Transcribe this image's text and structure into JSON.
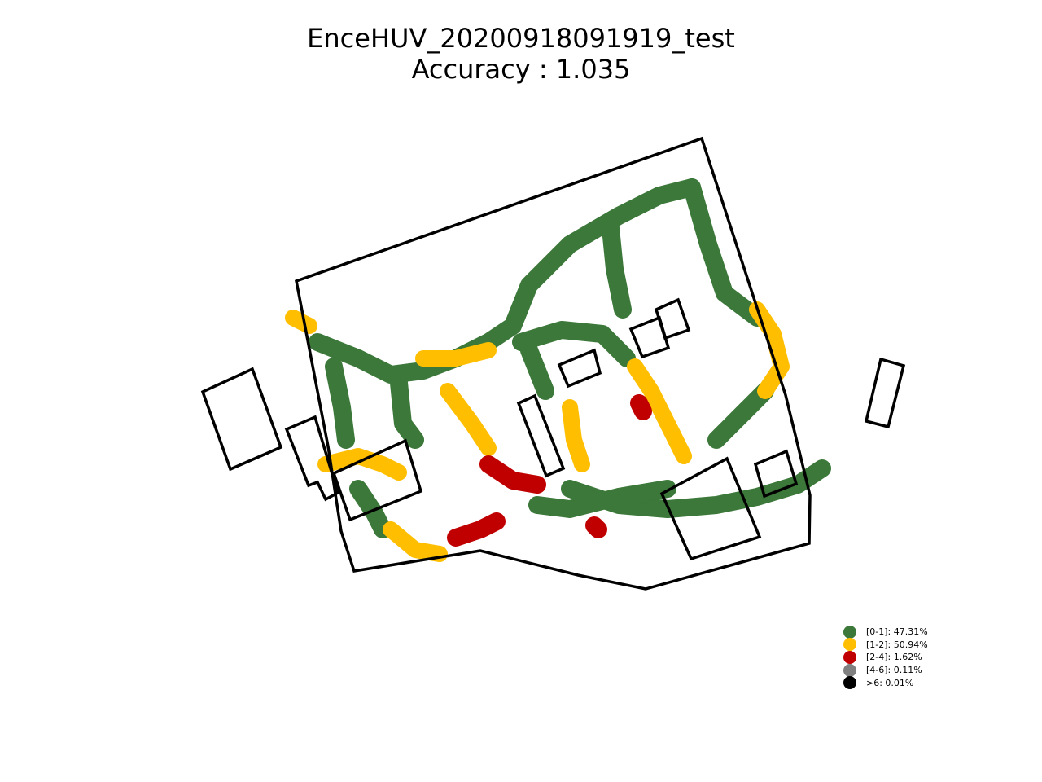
{
  "title": {
    "line1": "EnceHUV_20200918091919_test",
    "line2": "Accuracy : 1.035"
  },
  "legend": [
    {
      "label": "[0-1]: 47.31%",
      "color": "#3b7839"
    },
    {
      "label": "[1-2]: 50.94%",
      "color": "#ffbf00"
    },
    {
      "label": "[2-4]: 1.62%",
      "color": "#c00000"
    },
    {
      "label": "[4-6]: 0.11%",
      "color": "#808080"
    },
    {
      "label": ">6: 0.01%",
      "color": "#000000"
    }
  ],
  "chart_data": {
    "type": "scatter",
    "marker": "x",
    "axes_visible": false,
    "title": "EnceHUV_20200918091919_test\nAccuracy : 1.035",
    "categories": [
      "[0-1]",
      "[1-2]",
      "[2-4]",
      "[4-6]",
      ">6"
    ],
    "shares_percent": [
      47.31,
      50.94,
      1.62,
      0.11,
      0.01
    ],
    "colors": [
      "#3b7839",
      "#ffbf00",
      "#c00000",
      "#808080",
      "#000000"
    ],
    "legend_position": "lower-right"
  }
}
